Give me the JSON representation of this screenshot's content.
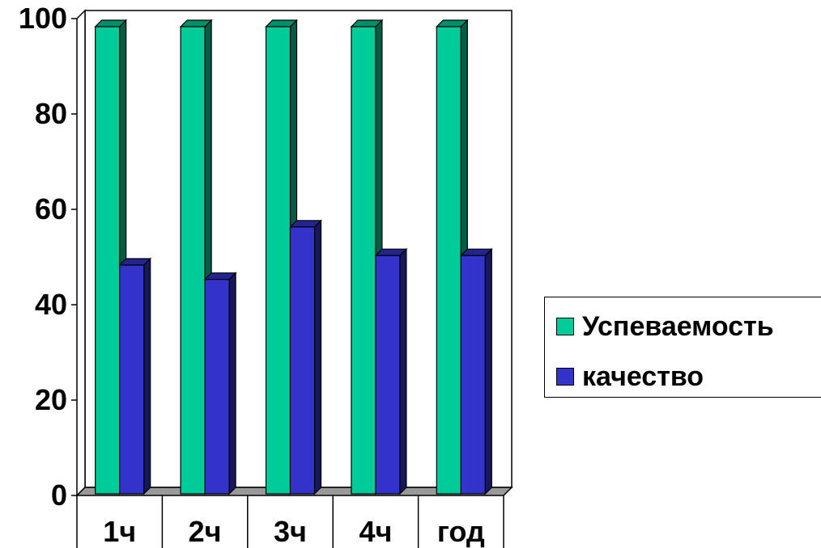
{
  "chart_data": {
    "type": "bar",
    "categories": [
      "1ч",
      "2ч",
      "3ч",
      "4ч",
      "год"
    ],
    "series": [
      {
        "name": "Успеваемость",
        "values": [
          100,
          100,
          100,
          100,
          100
        ],
        "color": "#00CC99"
      },
      {
        "name": "качество",
        "values": [
          50,
          47,
          58,
          52,
          52
        ],
        "color": "#3333CC"
      }
    ],
    "ylim": [
      0,
      100
    ],
    "yticks": [
      0,
      20,
      40,
      60,
      80,
      100
    ],
    "grid": false,
    "legend_position": "right",
    "style": "3d-column"
  }
}
